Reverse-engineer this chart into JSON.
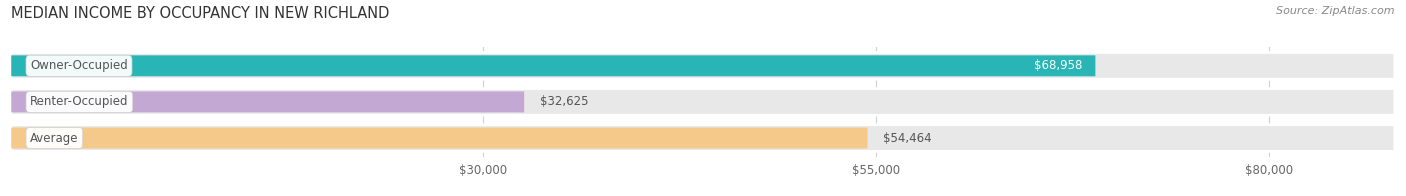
{
  "title": "MEDIAN INCOME BY OCCUPANCY IN NEW RICHLAND",
  "source": "Source: ZipAtlas.com",
  "categories": [
    "Owner-Occupied",
    "Renter-Occupied",
    "Average"
  ],
  "values": [
    68958,
    32625,
    54464
  ],
  "labels": [
    "$68,958",
    "$32,625",
    "$54,464"
  ],
  "label_inside": [
    true,
    false,
    false
  ],
  "bar_colors": [
    "#29b5b5",
    "#c4a8d4",
    "#f5c98a"
  ],
  "bar_bg_color": "#e8e8e8",
  "x_ticks": [
    30000,
    55000,
    80000
  ],
  "x_tick_labels": [
    "$30,000",
    "$55,000",
    "$80,000"
  ],
  "xmax": 88000,
  "figsize": [
    14.06,
    1.96
  ],
  "dpi": 100,
  "title_fontsize": 10.5,
  "label_fontsize": 8.5,
  "bar_label_fontsize": 8.5,
  "tick_fontsize": 8.5,
  "source_fontsize": 8,
  "bg_color": "#ffffff"
}
